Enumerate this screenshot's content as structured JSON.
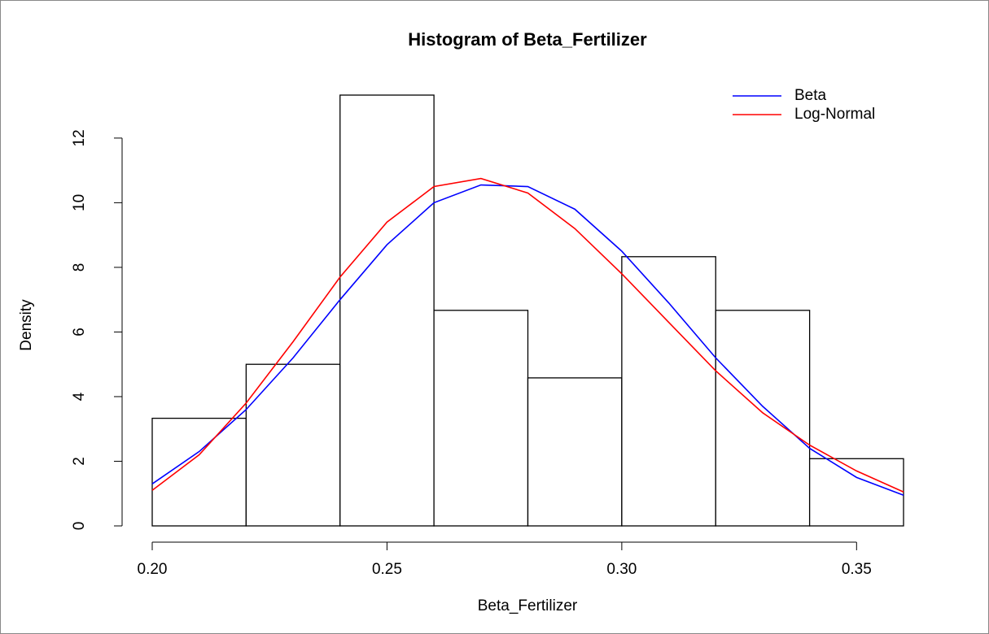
{
  "chart_data": {
    "type": "histogram",
    "title": "Histogram of Beta_Fertilizer",
    "xlabel": "Beta_Fertilizer",
    "ylabel": "Density",
    "bins": [
      0.2,
      0.22,
      0.24,
      0.26,
      0.28,
      0.3,
      0.32,
      0.34,
      0.36
    ],
    "values": [
      3.33,
      5.0,
      13.33,
      6.67,
      4.58,
      8.33,
      6.67,
      2.08
    ],
    "bar_fill": "#ffffff",
    "bar_stroke": "#000000",
    "lines": [
      {
        "name": "Beta",
        "color": "#0000ff",
        "x": [
          0.2,
          0.21,
          0.22,
          0.23,
          0.24,
          0.25,
          0.26,
          0.27,
          0.28,
          0.29,
          0.3,
          0.31,
          0.32,
          0.33,
          0.34,
          0.35,
          0.36
        ],
        "values": [
          1.3,
          2.3,
          3.6,
          5.2,
          7.0,
          8.7,
          10.0,
          10.55,
          10.5,
          9.8,
          8.5,
          6.9,
          5.2,
          3.7,
          2.4,
          1.5,
          0.95
        ]
      },
      {
        "name": "Log-Normal",
        "color": "#ff0000",
        "x": [
          0.2,
          0.21,
          0.22,
          0.23,
          0.24,
          0.25,
          0.26,
          0.27,
          0.28,
          0.29,
          0.3,
          0.31,
          0.32,
          0.33,
          0.34,
          0.35,
          0.36
        ],
        "values": [
          1.1,
          2.2,
          3.8,
          5.7,
          7.7,
          9.4,
          10.5,
          10.75,
          10.3,
          9.2,
          7.8,
          6.3,
          4.8,
          3.5,
          2.5,
          1.7,
          1.05
        ]
      }
    ],
    "xlim": [
      0.2,
      0.36
    ],
    "ylim": [
      0,
      13.33
    ],
    "xticks": [
      {
        "value": 0.2,
        "label": "0.20"
      },
      {
        "value": 0.25,
        "label": "0.25"
      },
      {
        "value": 0.3,
        "label": "0.30"
      },
      {
        "value": 0.35,
        "label": "0.35"
      }
    ],
    "yticks": [
      0,
      2,
      4,
      6,
      8,
      10,
      12
    ],
    "legend": "topright"
  }
}
